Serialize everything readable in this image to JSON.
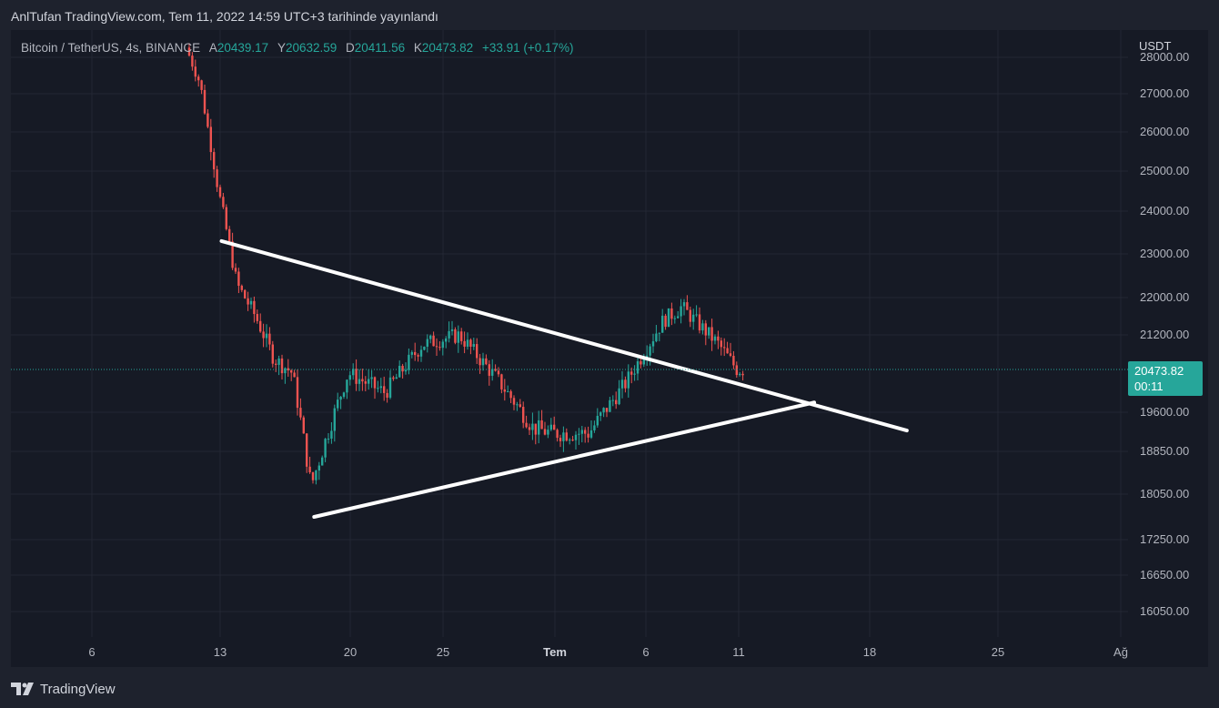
{
  "header": {
    "title": "AnlTufan TradingView.com, Tem 11, 2022 14:59 UTC+3 tarihinde yayınlandı"
  },
  "legend": {
    "symbol": "Bitcoin / TetherUS, 4s, BINANCE",
    "open_label": "A",
    "open": "20439.17",
    "high_label": "Y",
    "high": "20632.59",
    "low_label": "D",
    "low": "20411.56",
    "close_label": "K",
    "close": "20473.82",
    "change": "+33.91 (+0.17%)"
  },
  "price_axis": {
    "currency": "USDT",
    "ticks": [
      "28000.00",
      "27000.00",
      "26000.00",
      "25000.00",
      "24000.00",
      "23000.00",
      "22000.00",
      "21200.00",
      "19600.00",
      "18850.00",
      "18050.00",
      "17250.00",
      "16650.00",
      "16050.00"
    ]
  },
  "price_tag": {
    "price": "20473.82",
    "countdown": "00:11"
  },
  "time_axis": {
    "ticks": [
      {
        "label": "6",
        "bold": false
      },
      {
        "label": "13",
        "bold": false
      },
      {
        "label": "20",
        "bold": false
      },
      {
        "label": "25",
        "bold": false
      },
      {
        "label": "Tem",
        "bold": true
      },
      {
        "label": "6",
        "bold": false
      },
      {
        "label": "11",
        "bold": false
      },
      {
        "label": "18",
        "bold": false
      },
      {
        "label": "25",
        "bold": false
      },
      {
        "label": "Ağ",
        "bold": false
      }
    ]
  },
  "footer": {
    "brand": "TradingView"
  },
  "colors": {
    "up": "#26a69a",
    "down": "#ef5350",
    "trendline": "#ffffff",
    "background": "#161a25"
  },
  "chart_data": {
    "type": "candlestick",
    "title": "Bitcoin / TetherUS, 4s, BINANCE",
    "x_ticks": [
      "6",
      "13",
      "20",
      "25",
      "Tem",
      "6",
      "11",
      "18",
      "25",
      "Ağ"
    ],
    "ylim": [
      15600,
      28100
    ],
    "last_price": 20473.82,
    "series": [
      {
        "x": "2022-06-11",
        "y": 28600
      },
      {
        "x": "2022-06-12",
        "y": 27300
      },
      {
        "x": "2022-06-13",
        "y": 24500
      },
      {
        "x": "2022-06-14",
        "y": 22300
      },
      {
        "x": "2022-06-15",
        "y": 21600
      },
      {
        "x": "2022-06-16",
        "y": 20700
      },
      {
        "x": "2022-06-17",
        "y": 20400
      },
      {
        "x": "2022-06-18",
        "y": 18200
      },
      {
        "x": "2022-06-19",
        "y": 19300
      },
      {
        "x": "2022-06-20",
        "y": 20400
      },
      {
        "x": "2022-06-22",
        "y": 20000
      },
      {
        "x": "2022-06-24",
        "y": 21000
      },
      {
        "x": "2022-06-26",
        "y": 21200
      },
      {
        "x": "2022-06-28",
        "y": 20300
      },
      {
        "x": "2022-06-30",
        "y": 19300
      },
      {
        "x": "2022-07-01",
        "y": 19200
      },
      {
        "x": "2022-07-03",
        "y": 19200
      },
      {
        "x": "2022-07-05",
        "y": 20200
      },
      {
        "x": "2022-07-07",
        "y": 21500
      },
      {
        "x": "2022-07-08",
        "y": 21800
      },
      {
        "x": "2022-07-10",
        "y": 21000
      },
      {
        "x": "2022-07-11",
        "y": 20473.82
      }
    ],
    "trendlines": [
      {
        "x1": "2022-06-13",
        "y1": 23300,
        "x2": "2022-07-20",
        "y2": 19250
      },
      {
        "x1": "2022-06-18",
        "y1": 17650,
        "x2": "2022-07-15",
        "y2": 19800
      }
    ]
  }
}
